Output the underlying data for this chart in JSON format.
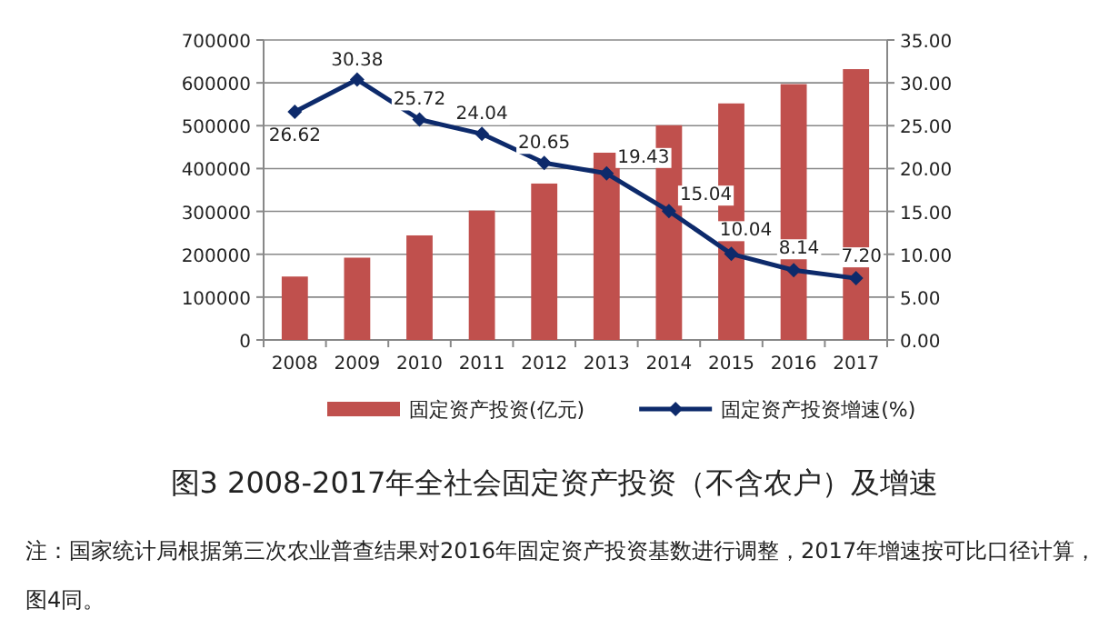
{
  "chart_data": {
    "type": "bar",
    "title": "图3 2008-2017年全社会固定资产投资（不含农户）及增速",
    "categories": [
      "2008",
      "2009",
      "2010",
      "2011",
      "2012",
      "2013",
      "2014",
      "2015",
      "2016",
      "2017"
    ],
    "series": [
      {
        "name": "固定资产投资(亿元)",
        "color": "#c0504d",
        "values": [
          148000,
          192000,
          244000,
          302000,
          365000,
          437000,
          501000,
          552000,
          597000,
          632000
        ]
      },
      {
        "name": "固定资产投资增速(%)",
        "type": "line",
        "axis": "y2",
        "color": "#0d2a6b",
        "marker": "diamond",
        "values": [
          26.62,
          30.38,
          25.72,
          24.04,
          20.65,
          19.43,
          15.04,
          10.04,
          8.14,
          7.2
        ],
        "value_labels": [
          "26.62",
          "30.38",
          "25.72",
          "24.04",
          "20.65",
          "19.43",
          "15.04",
          "10.04",
          "8.14",
          "7.20"
        ]
      }
    ],
    "ylim": [
      0,
      700000
    ],
    "yticks": [
      0,
      100000,
      200000,
      300000,
      400000,
      500000,
      600000,
      700000
    ],
    "y2lim": [
      0,
      35
    ],
    "y2ticks": [
      {
        "value": 0,
        "label": "0.00"
      },
      {
        "value": 5,
        "label": "5.00"
      },
      {
        "value": 10,
        "label": "10.00"
      },
      {
        "value": 15,
        "label": "15.00"
      },
      {
        "value": 20,
        "label": "20.00"
      },
      {
        "value": 25,
        "label": "25.00"
      },
      {
        "value": 30,
        "label": "30.00"
      },
      {
        "value": 35,
        "label": "35.00"
      }
    ],
    "grid": "y",
    "legend": "bottom",
    "annotations": [
      "注：国家统计局根据第三次农业普查结果对2016年固定资产投资基数进行调整，2017年增速按可比口径计算，图4同。"
    ]
  }
}
